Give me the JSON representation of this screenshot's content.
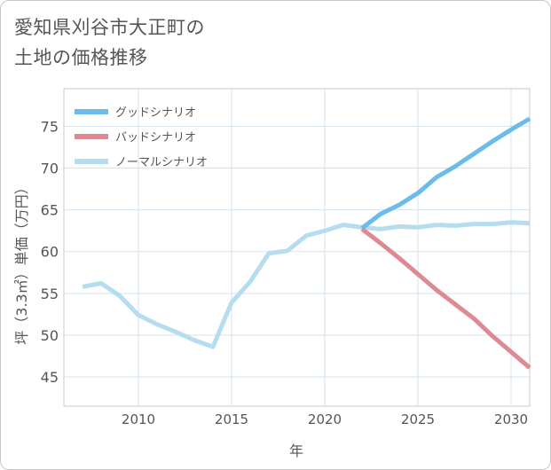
{
  "title": {
    "line1": "愛知県刈谷市大正町の",
    "line2": "土地の価格推移"
  },
  "chart_data": {
    "type": "line",
    "xlabel": "年",
    "ylabel": "坪（3.3㎡）単価（万円）",
    "xlim": [
      2006,
      2031
    ],
    "ylim": [
      41.5,
      79.5
    ],
    "x_ticks": [
      2010,
      2015,
      2020,
      2025,
      2030
    ],
    "y_ticks": [
      45,
      50,
      55,
      60,
      65,
      70,
      75
    ],
    "grid": true,
    "legend_position": "top-left",
    "series": [
      {
        "name": "グッドシナリオ",
        "color": "#6bbcea",
        "x": [
          2022,
          2023,
          2024,
          2025,
          2026,
          2027,
          2028,
          2029,
          2030,
          2031
        ],
        "y": [
          62.8,
          64.5,
          65.6,
          67.0,
          68.9,
          70.2,
          71.7,
          73.2,
          74.6,
          75.9
        ]
      },
      {
        "name": "バッドシナリオ",
        "color": "#dd8a93",
        "x": [
          2022,
          2023,
          2024,
          2025,
          2026,
          2027,
          2028,
          2029,
          2030,
          2031
        ],
        "y": [
          62.7,
          61.0,
          59.2,
          57.3,
          55.4,
          53.7,
          52.0,
          49.9,
          48.0,
          46.1
        ]
      },
      {
        "name": "ノーマルシナリオ",
        "color": "#b6ddef",
        "x": [
          2007,
          2008,
          2009,
          2010,
          2011,
          2012,
          2013,
          2014,
          2015,
          2016,
          2017,
          2018,
          2019,
          2020,
          2021,
          2022,
          2023,
          2024,
          2025,
          2026,
          2027,
          2028,
          2029,
          2030,
          2031
        ],
        "y": [
          55.8,
          56.2,
          54.7,
          52.4,
          51.3,
          50.4,
          49.4,
          48.6,
          53.9,
          56.4,
          59.8,
          60.1,
          61.9,
          62.5,
          63.2,
          62.9,
          62.7,
          63.0,
          62.9,
          63.2,
          63.1,
          63.3,
          63.3,
          63.5,
          63.4
        ]
      }
    ]
  }
}
